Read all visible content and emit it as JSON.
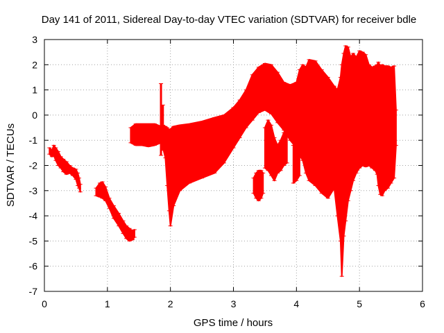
{
  "chart_data": {
    "type": "area",
    "title": "Day 141 of 2011, Sidereal Day-to-day VTEC variation (SDTVAR) for receiver bdle",
    "xlabel": "GPS time / hours",
    "ylabel": "SDTVAR / TECUs",
    "xlim": [
      0,
      6
    ],
    "ylim": [
      -7,
      3
    ],
    "xticks": [
      "0",
      "1",
      "2",
      "3",
      "4",
      "5",
      "6"
    ],
    "yticks": [
      "3",
      "2",
      "1",
      "0",
      "-1",
      "-2",
      "-3",
      "-4",
      "-5",
      "-6",
      "-7"
    ],
    "grid": true,
    "color": "#ff0000",
    "series": [
      {
        "segments": [
          {
            "x": [
              0.08,
              0.12,
              0.15,
              0.18,
              0.22,
              0.26,
              0.3,
              0.35,
              0.4,
              0.45,
              0.5,
              0.53,
              0.55,
              0.57
            ],
            "upper": [
              -1.3,
              -1.4,
              -1.2,
              -1.3,
              -1.45,
              -1.65,
              -1.75,
              -1.85,
              -2.0,
              -2.1,
              -2.15,
              -2.3,
              -2.5,
              -2.75
            ],
            "lower": [
              -1.55,
              -1.65,
              -1.6,
              -1.8,
              -2.0,
              -2.1,
              -2.25,
              -2.35,
              -2.3,
              -2.4,
              -2.55,
              -2.8,
              -2.9,
              -3.05
            ]
          },
          {
            "x": [
              0.82,
              0.88,
              0.92,
              0.97,
              1.03,
              1.1,
              1.18,
              1.25,
              1.3,
              1.35,
              1.4,
              1.43
            ],
            "upper": [
              -2.9,
              -2.7,
              -2.65,
              -2.85,
              -3.3,
              -3.6,
              -3.9,
              -4.2,
              -4.4,
              -4.5,
              -4.6,
              -4.55
            ],
            "lower": [
              -3.2,
              -3.25,
              -3.3,
              -3.4,
              -3.7,
              -4.1,
              -4.4,
              -4.7,
              -4.9,
              -5.0,
              -4.95,
              -4.85
            ]
          },
          {
            "x": [
              1.37,
              1.45,
              1.55,
              1.65,
              1.75,
              1.85,
              1.88,
              1.92,
              1.95,
              1.98,
              2.0,
              2.05,
              2.15,
              2.3,
              2.5,
              2.7,
              2.85,
              3.0,
              3.1,
              3.2,
              3.3,
              3.4,
              3.5,
              3.6,
              3.7,
              3.8,
              3.9,
              4.0,
              4.05,
              4.1,
              4.15,
              4.2,
              4.3,
              4.4,
              4.5,
              4.6,
              4.65,
              4.7,
              4.72,
              4.75,
              4.78,
              4.82,
              4.86,
              4.9,
              4.95,
              5.0,
              5.05,
              5.1,
              5.15,
              5.2,
              5.25,
              5.28,
              5.3,
              5.33,
              5.36,
              5.4,
              5.45,
              5.5,
              5.55,
              5.58
            ],
            "upper": [
              -0.5,
              -0.35,
              -0.35,
              -0.35,
              -0.35,
              -0.45,
              -0.4,
              -0.45,
              -0.5,
              -0.6,
              -0.55,
              -0.45,
              -0.4,
              -0.35,
              -0.25,
              -0.1,
              0.0,
              0.3,
              0.6,
              1.0,
              1.6,
              1.9,
              2.05,
              2.0,
              1.7,
              1.3,
              1.2,
              1.3,
              1.8,
              2.0,
              1.9,
              2.2,
              2.15,
              1.8,
              1.5,
              1.15,
              1.0,
              1.5,
              2.0,
              2.45,
              2.75,
              2.7,
              2.3,
              2.45,
              2.3,
              2.55,
              2.5,
              2.4,
              2.0,
              1.9,
              1.95,
              2.0,
              2.1,
              1.95,
              2.0,
              1.95,
              1.95,
              1.9,
              1.95,
              0.2
            ],
            "lower": [
              -1.1,
              -1.2,
              -1.2,
              -1.25,
              -1.2,
              -1.1,
              -1.3,
              -1.7,
              -2.8,
              -3.8,
              -4.4,
              -3.6,
              -3.0,
              -2.7,
              -2.5,
              -2.3,
              -1.9,
              -1.3,
              -0.9,
              -0.5,
              -0.2,
              0.1,
              0.2,
              0.05,
              -0.3,
              -0.6,
              -1.0,
              -1.3,
              -1.6,
              -1.8,
              -2.3,
              -2.6,
              -2.8,
              -3.1,
              -3.3,
              -2.9,
              -4.0,
              -5.0,
              -6.4,
              -4.8,
              -4.2,
              -3.4,
              -3.0,
              -2.6,
              -2.3,
              -2.1,
              -2.0,
              -2.05,
              -2.0,
              -2.1,
              -2.2,
              -2.35,
              -2.8,
              -3.15,
              -3.2,
              -3.0,
              -2.9,
              -2.7,
              -2.5,
              -1.2
            ]
          },
          {
            "x": [
              3.32,
              3.36,
              3.4,
              3.44,
              3.47
            ],
            "upper": [
              -2.5,
              -2.3,
              -2.2,
              -2.2,
              -2.3
            ],
            "lower": [
              -3.1,
              -3.3,
              -3.4,
              -3.3,
              -3.1
            ]
          },
          {
            "x": [
              3.5,
              3.55,
              3.6,
              3.65,
              3.7,
              3.75,
              3.8,
              3.85
            ],
            "upper": [
              -0.5,
              -0.2,
              -0.4,
              -0.9,
              -1.2,
              -1.0,
              -0.7,
              -0.4
            ],
            "lower": [
              -2.1,
              -2.2,
              -2.4,
              -2.6,
              -2.3,
              -2.2,
              -2.0,
              -1.9
            ]
          },
          {
            "x": [
              3.95,
              4.0,
              4.05
            ],
            "upper": [
              -1.2,
              -1.0,
              -1.1
            ],
            "lower": [
              -2.7,
              -2.6,
              -2.4
            ]
          }
        ]
      }
    ],
    "spikes": [
      {
        "x": 1.85,
        "y0": -1.6,
        "y1": 1.25
      },
      {
        "x": 1.88,
        "y0": -1.4,
        "y1": 0.4
      }
    ]
  }
}
